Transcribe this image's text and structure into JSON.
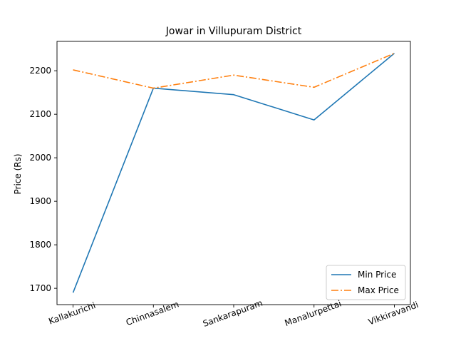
{
  "chart_data": {
    "type": "line",
    "title": "Jowar in Villupuram District",
    "xlabel": "",
    "ylabel": "Price (Rs)",
    "categories": [
      "Kallakurichi",
      "Chinnasalem",
      "Sankarapuram",
      "Manalurpettai",
      "Vikkiravandi"
    ],
    "series": [
      {
        "name": "Min Price",
        "values": [
          1690,
          2160,
          2145,
          2087,
          2240
        ],
        "color": "#1f77b4",
        "style": "solid"
      },
      {
        "name": "Max Price",
        "values": [
          2202,
          2160,
          2190,
          2162,
          2240
        ],
        "color": "#ff7f0e",
        "style": "dashdot"
      }
    ],
    "yticks": [
      1700,
      1800,
      1900,
      2000,
      2100,
      2200
    ],
    "ylim": [
      1662.5,
      2267.5
    ],
    "grid": false,
    "legend_position": "lower-right",
    "xtick_rotation": -20
  }
}
